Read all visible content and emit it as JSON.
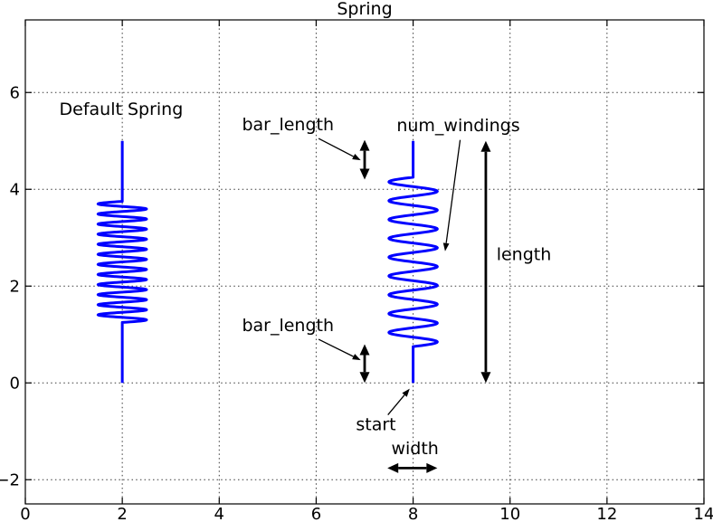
{
  "figure": {
    "title": "Spring",
    "background": "#ffffff"
  },
  "colors": {
    "spring": "#0000ff",
    "axis": "#000000",
    "grid": "#3a3a3a",
    "annotation": "#000000"
  },
  "chart_data": {
    "type": "line",
    "title": "Spring",
    "xlabel": "",
    "ylabel": "",
    "xlim": [
      0,
      14
    ],
    "ylim": [
      -2.5,
      7.5
    ],
    "xticks": [
      0,
      2,
      4,
      6,
      8,
      10,
      12,
      14
    ],
    "xtick_labels": [
      "0",
      "2",
      "4",
      "6",
      "8",
      "10",
      "12",
      "14"
    ],
    "yticks": [
      -2,
      0,
      2,
      4,
      6
    ],
    "ytick_labels": [
      "−2",
      "0",
      "2",
      "4",
      "6"
    ],
    "grid": "dotted",
    "legend": "none",
    "springs": [
      {
        "name": "default-spring",
        "start": [
          2,
          0
        ],
        "length": 5,
        "width": 1,
        "bar_length": 1.25,
        "num_windings": 12,
        "color": "#0000ff"
      },
      {
        "name": "annotated-spring",
        "start": [
          8,
          0
        ],
        "length": 5,
        "width": 1,
        "bar_length": 0.75,
        "num_windings": 9,
        "color": "#0000ff"
      }
    ],
    "text_labels": [
      {
        "id": "default-spring-label",
        "text": "Default Spring",
        "x": 0.7,
        "y": 5.65
      },
      {
        "id": "bar-length-top-label",
        "text": "bar_length",
        "x": 4.47,
        "y": 5.33
      },
      {
        "id": "num-windings-label",
        "text": "num_windings",
        "x": 7.66,
        "y": 5.31
      },
      {
        "id": "length-label",
        "text": "length",
        "x": 9.72,
        "y": 2.65
      },
      {
        "id": "bar-length-bottom-label",
        "text": "bar_length",
        "x": 4.47,
        "y": 1.18
      },
      {
        "id": "start-label",
        "text": "start",
        "x": 6.82,
        "y": -0.86
      },
      {
        "id": "width-label",
        "text": "width",
        "x": 7.55,
        "y": -1.36
      }
    ],
    "pointer_arrows": [
      {
        "id": "bar-length-top-pointer",
        "from": [
          6.05,
          5.05
        ],
        "to": [
          6.92,
          4.6
        ]
      },
      {
        "id": "num-windings-pointer",
        "from": [
          8.97,
          5.02
        ],
        "to": [
          8.66,
          2.72
        ]
      },
      {
        "id": "bar-length-bottom-pointer",
        "from": [
          6.05,
          0.9
        ],
        "to": [
          6.92,
          0.47
        ]
      },
      {
        "id": "start-pointer",
        "from": [
          7.48,
          -0.66
        ],
        "to": [
          7.93,
          -0.12
        ]
      }
    ],
    "dimension_arrows": [
      {
        "id": "bar-length-top-dim",
        "from": [
          7.0,
          4.2
        ],
        "to": [
          7.0,
          5.02
        ]
      },
      {
        "id": "bar-length-bottom-dim",
        "from": [
          7.0,
          0.0
        ],
        "to": [
          7.0,
          0.8
        ]
      },
      {
        "id": "length-dim",
        "from": [
          9.5,
          0.0
        ],
        "to": [
          9.5,
          5.0
        ]
      },
      {
        "id": "width-dim",
        "from": [
          7.47,
          -1.76
        ],
        "to": [
          8.5,
          -1.76
        ]
      }
    ]
  }
}
